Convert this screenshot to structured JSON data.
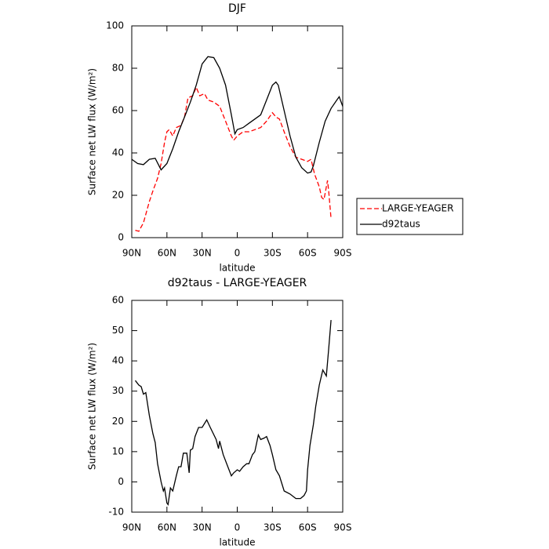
{
  "chart_data": [
    {
      "type": "line",
      "title": "DJF",
      "xlabel": "latitude",
      "ylabel": "Surface net LW flux (W/m²)",
      "xlim": [
        90,
        -90
      ],
      "ylim": [
        0,
        100
      ],
      "xticks": [
        {
          "value": 90,
          "label": "90N"
        },
        {
          "value": 60,
          "label": "60N"
        },
        {
          "value": 30,
          "label": "30N"
        },
        0,
        {
          "value": -30,
          "label": "30S"
        },
        {
          "value": -60,
          "label": "60S"
        },
        {
          "value": -90,
          "label": "90S"
        }
      ],
      "yticks": [
        0,
        20,
        40,
        60,
        80,
        100
      ],
      "legend": "outside-right",
      "series": [
        {
          "name": "LARGE-YEAGER",
          "color": "#ff0000",
          "dash": true,
          "x": [
            87,
            84,
            80,
            75,
            72,
            68,
            65,
            62,
            60,
            58,
            55,
            52,
            48,
            45,
            42,
            38,
            35,
            32,
            28,
            25,
            20,
            15,
            10,
            5,
            3,
            0,
            -5,
            -10,
            -15,
            -20,
            -25,
            -30,
            -33,
            -36,
            -40,
            -45,
            -50,
            -55,
            -60,
            -63,
            -66,
            -70,
            -72,
            -74,
            -77,
            -78,
            -80
          ],
          "values": [
            3.5,
            3,
            7,
            17,
            22,
            28,
            35,
            45,
            50,
            51,
            48,
            52,
            53,
            57,
            66,
            67,
            71,
            67,
            68,
            65,
            64,
            62,
            55,
            48,
            46,
            48,
            50,
            50,
            51,
            52,
            55,
            59,
            57,
            56,
            50,
            43,
            38,
            37,
            36,
            37,
            30,
            24,
            19,
            18,
            27,
            22,
            9
          ]
        },
        {
          "name": "d92taus",
          "color": "#000000",
          "dash": false,
          "x": [
            90,
            85,
            80,
            75,
            70,
            65,
            60,
            55,
            50,
            45,
            40,
            35,
            30,
            25,
            20,
            15,
            10,
            5,
            2,
            0,
            -5,
            -10,
            -15,
            -20,
            -25,
            -30,
            -33,
            -35,
            -40,
            -45,
            -50,
            -55,
            -60,
            -63,
            -65,
            -70,
            -75,
            -80,
            -85,
            -87,
            -90
          ],
          "values": [
            37,
            35,
            34.5,
            37,
            37.5,
            32,
            35,
            42,
            50,
            57,
            64,
            72,
            82,
            85.5,
            85,
            80,
            72,
            58,
            49,
            51,
            52,
            54,
            56,
            58,
            65,
            72,
            73.5,
            72,
            60,
            48,
            38,
            33,
            30.5,
            31,
            34,
            45,
            55,
            61,
            65,
            66.5,
            62
          ]
        }
      ]
    },
    {
      "type": "line",
      "title": "d92taus - LARGE-YEAGER",
      "xlabel": "latitude",
      "ylabel": "Surface net LW flux (W/m²)",
      "xlim": [
        90,
        -90
      ],
      "ylim": [
        -10,
        60
      ],
      "xticks": [
        {
          "value": 90,
          "label": "90N"
        },
        {
          "value": 60,
          "label": "60N"
        },
        {
          "value": 30,
          "label": "30N"
        },
        0,
        {
          "value": -30,
          "label": "30S"
        },
        {
          "value": -60,
          "label": "60S"
        },
        {
          "value": -90,
          "label": "90S"
        }
      ],
      "yticks": [
        -10,
        0,
        10,
        20,
        30,
        40,
        50,
        60
      ],
      "series": [
        {
          "color": "#000000",
          "dash": false,
          "x": [
            87,
            84,
            82,
            80,
            78,
            75,
            72,
            70,
            68,
            65,
            63,
            62,
            60,
            59,
            57,
            55,
            52,
            50,
            48,
            46,
            43,
            41,
            40,
            38,
            36,
            33,
            30,
            26,
            23,
            18,
            16,
            15,
            12,
            8,
            5,
            3,
            0,
            -2,
            -5,
            -8,
            -10,
            -13,
            -15,
            -18,
            -20,
            -23,
            -25,
            -28,
            -30,
            -33,
            -36,
            -40,
            -45,
            -50,
            -54,
            -57,
            -59,
            -60,
            -62,
            -65,
            -67,
            -70,
            -73,
            -76,
            -78,
            -80
          ],
          "values": [
            33.5,
            32,
            31.5,
            29,
            29.5,
            22,
            16,
            13,
            6,
            0,
            -3,
            -2,
            -7,
            -7.5,
            -2,
            -3,
            2,
            5,
            5,
            9.5,
            9.5,
            3,
            10.5,
            11,
            15,
            18,
            18,
            20.5,
            18,
            14,
            11,
            13.5,
            9,
            5,
            2,
            3,
            4,
            3.5,
            5,
            6,
            6,
            9,
            10,
            15.5,
            14,
            14.5,
            15,
            12,
            9,
            4,
            2,
            -3,
            -4,
            -5.5,
            -5.5,
            -4.5,
            -3,
            4,
            12,
            19,
            25,
            32,
            37,
            35,
            44,
            53.5
          ]
        }
      ]
    }
  ]
}
